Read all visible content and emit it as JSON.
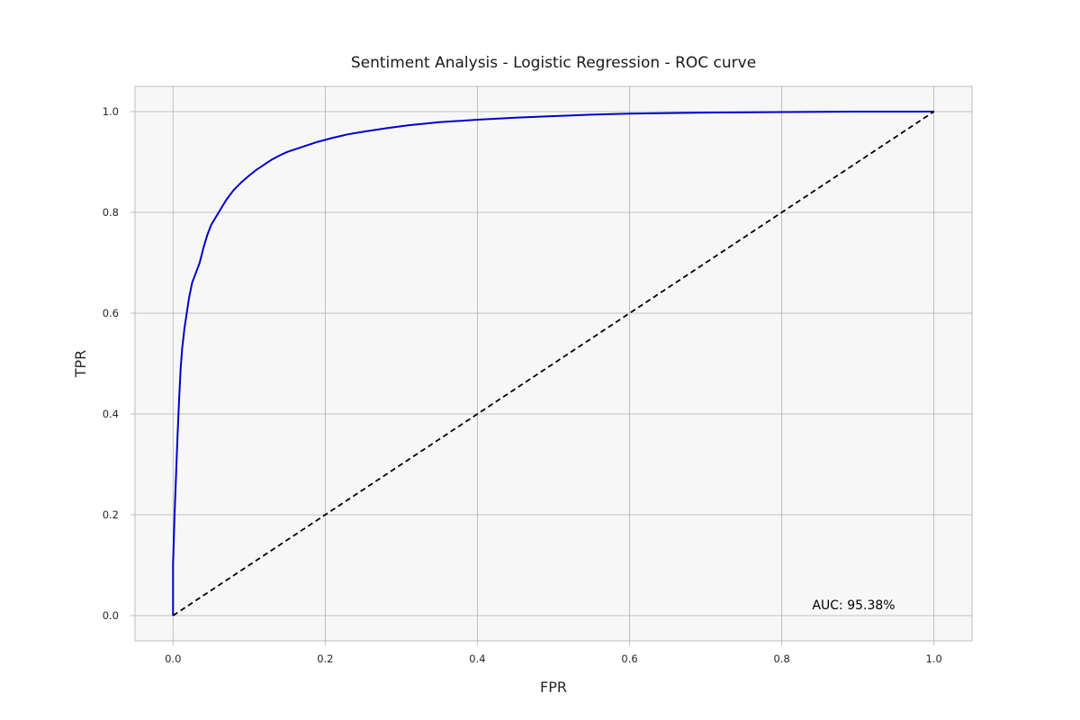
{
  "chart_data": {
    "type": "line",
    "title": "Sentiment Analysis - Logistic Regression - ROC curve",
    "xlabel": "FPR",
    "ylabel": "TPR",
    "xlim": [
      -0.05,
      1.05
    ],
    "ylim": [
      -0.05,
      1.05
    ],
    "xticks": [
      "0.0",
      "0.2",
      "0.4",
      "0.6",
      "0.8",
      "1.0"
    ],
    "yticks": [
      "0.0",
      "0.2",
      "0.4",
      "0.6",
      "0.8",
      "1.0"
    ],
    "grid": true,
    "legend": "none",
    "annotation": {
      "text": "AUC: 95.38%",
      "x": 0.84,
      "y": 0.02
    },
    "series": [
      {
        "color": "#0000cc",
        "style": "solid",
        "x": [
          0.0,
          0.0,
          0.002,
          0.004,
          0.006,
          0.008,
          0.01,
          0.012,
          0.015,
          0.018,
          0.021,
          0.025,
          0.03,
          0.035,
          0.04,
          0.045,
          0.05,
          0.06,
          0.07,
          0.08,
          0.09,
          0.1,
          0.11,
          0.12,
          0.13,
          0.14,
          0.15,
          0.17,
          0.19,
          0.21,
          0.23,
          0.25,
          0.28,
          0.31,
          0.35,
          0.4,
          0.45,
          0.5,
          0.55,
          0.6,
          0.7,
          0.8,
          0.9,
          1.0
        ],
        "y": [
          0.0,
          0.1,
          0.2,
          0.28,
          0.36,
          0.43,
          0.49,
          0.53,
          0.57,
          0.6,
          0.63,
          0.66,
          0.68,
          0.7,
          0.73,
          0.755,
          0.775,
          0.8,
          0.825,
          0.845,
          0.86,
          0.873,
          0.885,
          0.895,
          0.905,
          0.913,
          0.92,
          0.93,
          0.94,
          0.948,
          0.955,
          0.96,
          0.967,
          0.973,
          0.979,
          0.984,
          0.988,
          0.991,
          0.994,
          0.996,
          0.998,
          0.999,
          1.0,
          1.0
        ]
      },
      {
        "color": "#000000",
        "style": "dashed",
        "x": [
          0.0,
          1.0
        ],
        "y": [
          0.0,
          1.0
        ]
      }
    ]
  }
}
